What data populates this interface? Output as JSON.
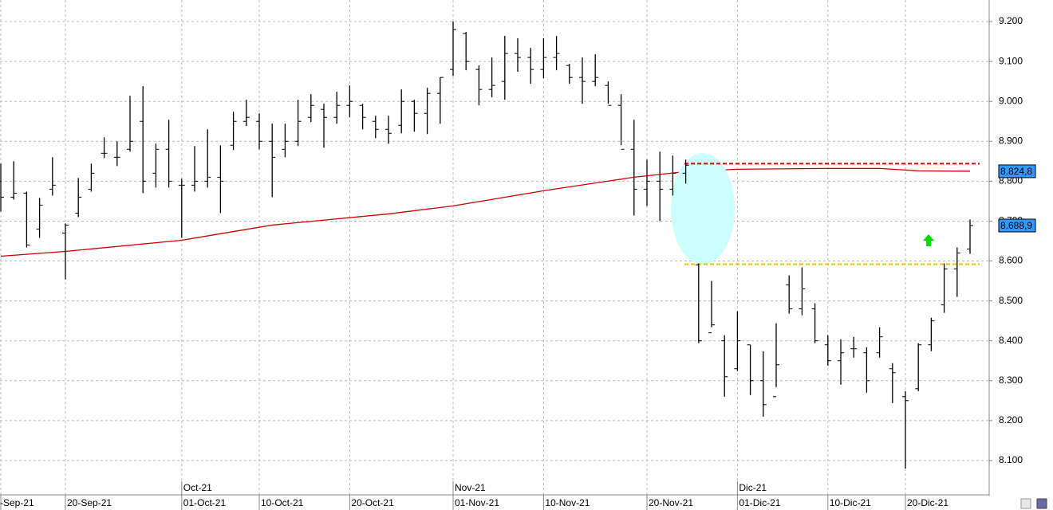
{
  "chart_data": {
    "type": "ohlc",
    "categories": [
      "-Sep-21",
      null,
      null,
      null,
      null,
      "20-Sep-21",
      null,
      null,
      null,
      null,
      null,
      null,
      null,
      null,
      "01-Oct-21",
      null,
      null,
      null,
      null,
      null,
      "10-Oct-21",
      null,
      null,
      null,
      null,
      null,
      null,
      "20-Oct-21",
      null,
      null,
      null,
      null,
      null,
      null,
      null,
      "01-Nov-21",
      null,
      null,
      null,
      null,
      null,
      null,
      "10-Nov-21",
      null,
      null,
      null,
      null,
      null,
      null,
      null,
      "20-Nov-21",
      null,
      null,
      null,
      null,
      null,
      null,
      "01-Dic-21",
      null,
      null,
      null,
      null,
      null,
      null,
      "10-Dic-21",
      null,
      null,
      null,
      null,
      null,
      "20-Dic-21",
      null,
      null,
      null,
      null,
      null
    ],
    "months": [
      {
        "index": 14,
        "label": "Oct-21"
      },
      {
        "index": 35,
        "label": "Nov-21"
      },
      {
        "index": 57,
        "label": "Dic-21"
      }
    ],
    "opens": [
      8800,
      8760,
      8770,
      8680,
      8780,
      8670,
      8720,
      8780,
      8870,
      8860,
      8880,
      8950,
      8820,
      8880,
      8790,
      8790,
      8800,
      8810,
      8890,
      8950,
      8950,
      8900,
      8880,
      8900,
      8960,
      8980,
      8960,
      8990,
      8990,
      8950,
      8930,
      8940,
      9000,
      8970,
      9020,
      9080,
      9170,
      9080,
      9030,
      9050,
      9120,
      9110,
      9080,
      9110,
      9090,
      9060,
      9050,
      9040,
      8990,
      8880,
      8780,
      8800,
      8780,
      8820,
      8590,
      8420,
      8400,
      8330,
      8390,
      8300,
      8260,
      8540,
      8480,
      8480,
      8390,
      8350,
      8380,
      8370,
      8370,
      8330,
      8260,
      8280,
      8390,
      8490,
      8580,
      8630
    ],
    "highs": [
      8844,
      8850,
      8774,
      8758,
      8860,
      8694,
      8808,
      8844,
      8910,
      8900,
      9014,
      9038,
      8894,
      8954,
      8806,
      8888,
      8930,
      8890,
      8974,
      9004,
      8970,
      8944,
      8944,
      9004,
      9018,
      8994,
      9024,
      9040,
      8994,
      8964,
      8964,
      9030,
      9004,
      9034,
      9060,
      9200,
      9174,
      9090,
      9110,
      9164,
      9158,
      9134,
      9158,
      9164,
      9094,
      9110,
      9118,
      9050,
      9018,
      8954,
      8854,
      8874,
      8864,
      8854,
      8594,
      8550,
      8414,
      8474,
      8390,
      8374,
      8444,
      8564,
      8584,
      8494,
      8414,
      8404,
      8410,
      8384,
      8434,
      8344,
      8274,
      8394,
      8458,
      8594,
      8634,
      8704
    ],
    "lows": [
      8724,
      8754,
      8634,
      8658,
      8764,
      8554,
      8710,
      8774,
      8858,
      8838,
      8874,
      8770,
      8784,
      8784,
      8658,
      8774,
      8784,
      8720,
      8878,
      8938,
      8880,
      8760,
      8860,
      8888,
      8948,
      8884,
      8944,
      8960,
      8930,
      8908,
      8894,
      8920,
      8924,
      8918,
      8944,
      9064,
      9078,
      8990,
      9010,
      9004,
      9074,
      9044,
      9058,
      9078,
      9044,
      8994,
      9038,
      8994,
      8890,
      8714,
      8738,
      8700,
      8764,
      8794,
      8394,
      8434,
      8260,
      8324,
      8264,
      8210,
      8284,
      8468,
      8464,
      8394,
      8338,
      8290,
      8358,
      8270,
      8358,
      8244,
      8080,
      8274,
      8374,
      8470,
      8510,
      8618
    ],
    "closes": [
      8760,
      8770,
      8640,
      8740,
      8790,
      8690,
      8760,
      8820,
      8870,
      8860,
      8900,
      8800,
      8880,
      8800,
      8790,
      8800,
      8810,
      8800,
      8950,
      8960,
      8900,
      8860,
      8900,
      8950,
      8990,
      8960,
      8990,
      9000,
      8960,
      8930,
      8920,
      9000,
      8970,
      9020,
      9060,
      9180,
      9100,
      9030,
      9040,
      9120,
      9110,
      9080,
      9110,
      9120,
      9060,
      9050,
      9060,
      8990,
      8880,
      8780,
      8800,
      8780,
      8820,
      8840,
      8400,
      8440,
      8310,
      8400,
      8300,
      8240,
      8340,
      8480,
      8530,
      8400,
      8350,
      8370,
      8380,
      8300,
      8410,
      8320,
      8250,
      8390,
      8450,
      8580,
      8620,
      8688.9
    ],
    "color": "#000000",
    "moving_average": {
      "color": "#cc0000",
      "x": [
        0,
        5,
        14,
        21,
        30,
        35,
        42,
        49,
        53,
        57,
        64,
        68,
        71,
        75
      ],
      "values": [
        8612,
        8624,
        8652,
        8690,
        8718,
        8738,
        8776,
        8810,
        8824,
        8830,
        8832,
        8832,
        8826,
        8824.8
      ]
    },
    "levels": [
      {
        "value": 8844,
        "color": "#dd0000"
      },
      {
        "value": 8592,
        "color": "#e6c200"
      }
    ],
    "last_labels": [
      {
        "value": 8824.8,
        "label": "8.824,8"
      },
      {
        "value": 8688.9,
        "label": "8.688,9"
      }
    ],
    "ylim": [
      8016,
      9254
    ],
    "yticks": [
      {
        "value": 8100,
        "label": "8.100"
      },
      {
        "value": 8200,
        "label": "8.200"
      },
      {
        "value": 8300,
        "label": "8.300"
      },
      {
        "value": 8400,
        "label": "8.400"
      },
      {
        "value": 8500,
        "label": "8.500"
      },
      {
        "value": 8600,
        "label": "8.600"
      },
      {
        "value": 8700,
        "label": "8.700"
      },
      {
        "value": 8800,
        "label": "8.800"
      },
      {
        "value": 8900,
        "label": "8.900"
      },
      {
        "value": 9000,
        "label": "9.000"
      },
      {
        "value": 9100,
        "label": "9.100"
      },
      {
        "value": 9200,
        "label": "9.200"
      }
    ],
    "grid": true
  }
}
